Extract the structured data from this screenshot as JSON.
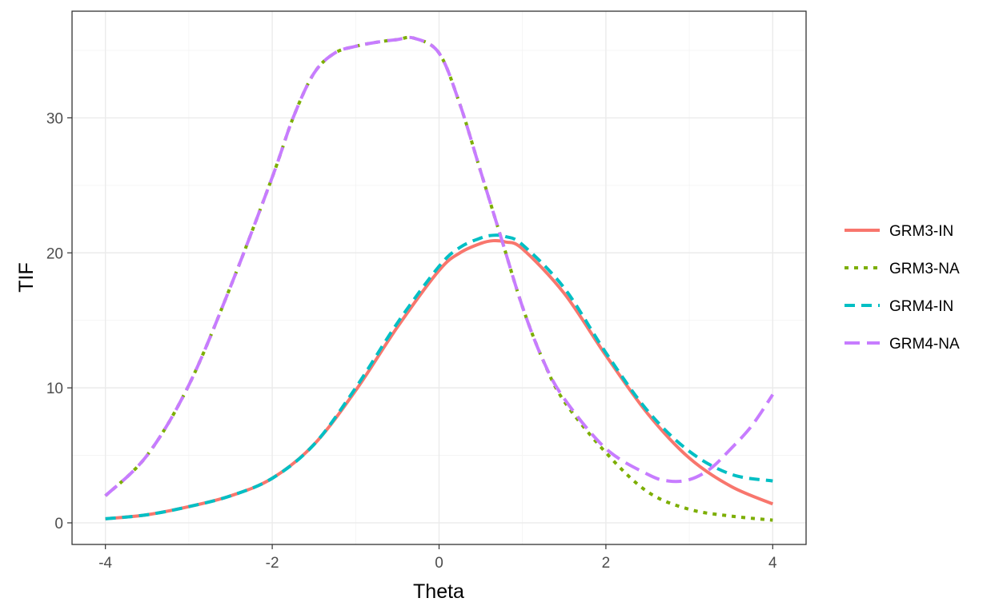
{
  "chart_data": {
    "type": "line",
    "title": "",
    "xlabel": "Theta",
    "ylabel": "TIF",
    "xlim": [
      -4.4,
      4.4
    ],
    "ylim": [
      -1.6,
      37.9
    ],
    "x_ticks": [
      -4,
      -2,
      0,
      2,
      4
    ],
    "x_tick_labels": [
      "-4",
      "-2",
      "0",
      "2",
      "4"
    ],
    "y_ticks": [
      0,
      10,
      20,
      30
    ],
    "y_tick_labels": [
      "0",
      "10",
      "20",
      "30"
    ],
    "grid": true,
    "legend_position": "right",
    "series": [
      {
        "name": "GRM3-IN",
        "color": "#F8766D",
        "linetype": "solid",
        "x": [
          -4,
          -3.5,
          -3,
          -2.5,
          -2,
          -1.5,
          -1,
          -0.5,
          0,
          0.25,
          0.5,
          0.65,
          0.8,
          1,
          1.5,
          2,
          2.5,
          3,
          3.5,
          4
        ],
        "y": [
          0.3,
          0.6,
          1.2,
          2.0,
          3.3,
          5.8,
          9.8,
          14.5,
          18.7,
          20.0,
          20.7,
          20.9,
          20.8,
          20.3,
          17.0,
          12.4,
          8.1,
          4.8,
          2.7,
          1.4
        ]
      },
      {
        "name": "GRM3-NA",
        "color": "#7CAE00",
        "linetype": "dotted",
        "x": [
          -4,
          -3.5,
          -3,
          -2.5,
          -2,
          -1.75,
          -1.5,
          -1.25,
          -1,
          -0.75,
          -0.5,
          -0.3,
          0,
          0.25,
          0.5,
          0.75,
          1,
          1.25,
          1.5,
          2,
          2.5,
          3,
          3.5,
          4
        ],
        "y": [
          2.0,
          5.0,
          10.2,
          17.5,
          25.6,
          30.0,
          33.3,
          34.8,
          35.3,
          35.6,
          35.8,
          35.9,
          34.8,
          31.0,
          26.0,
          21.0,
          16.0,
          12.0,
          9.0,
          5.2,
          2.3,
          1.0,
          0.5,
          0.2
        ]
      },
      {
        "name": "GRM4-IN",
        "color": "#00BFC4",
        "linetype": "dashed",
        "x": [
          -4,
          -3.5,
          -3,
          -2.5,
          -2,
          -1.5,
          -1,
          -0.5,
          0,
          0.25,
          0.5,
          0.65,
          0.8,
          1,
          1.5,
          2,
          2.5,
          3,
          3.5,
          4
        ],
        "y": [
          0.3,
          0.6,
          1.2,
          2.0,
          3.3,
          5.8,
          10.0,
          14.8,
          19.0,
          20.4,
          21.1,
          21.3,
          21.2,
          20.6,
          17.4,
          12.6,
          8.3,
          5.3,
          3.6,
          3.1
        ]
      },
      {
        "name": "GRM4-NA",
        "color": "#C77CFF",
        "linetype": "longdash",
        "x": [
          -4,
          -3.5,
          -3,
          -2.5,
          -2,
          -1.75,
          -1.5,
          -1.25,
          -1,
          -0.75,
          -0.5,
          -0.3,
          0,
          0.25,
          0.5,
          0.75,
          1,
          1.25,
          1.5,
          2,
          2.5,
          2.75,
          3,
          3.25,
          3.5,
          3.75,
          4
        ],
        "y": [
          2.0,
          5.0,
          10.2,
          17.5,
          25.6,
          30.0,
          33.3,
          34.8,
          35.3,
          35.6,
          35.8,
          35.9,
          34.8,
          31.0,
          26.0,
          21.0,
          16.0,
          12.0,
          9.2,
          5.5,
          3.6,
          3.1,
          3.2,
          4.0,
          5.5,
          7.2,
          9.5
        ]
      }
    ]
  }
}
